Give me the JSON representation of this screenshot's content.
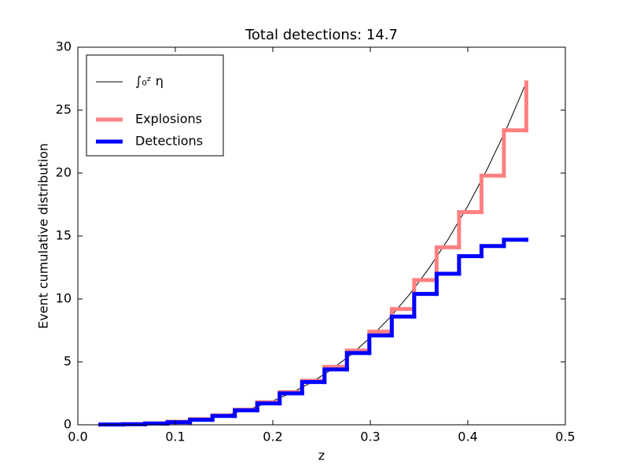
{
  "chart_data": {
    "type": "line",
    "title": "Total detections: 14.7",
    "x_label": "z",
    "y_label": "Event cumulative distribution",
    "xlim": [
      0,
      0.5
    ],
    "ylim": [
      0,
      30
    ],
    "xticks": [
      {
        "value": 0,
        "label": "0.0"
      },
      0.1,
      0.2,
      0.3,
      0.4,
      0.5
    ],
    "yticks": [
      0,
      5,
      10,
      15,
      20,
      25,
      30
    ],
    "legend": "upper left",
    "series": [
      {
        "name": "∫₀ᶻ η",
        "color": "#000000",
        "width": 1,
        "drawstyle": "default",
        "x": [
          0.02,
          0.04,
          0.06,
          0.08,
          0.1,
          0.12,
          0.14,
          0.16,
          0.18,
          0.2,
          0.22,
          0.24,
          0.26,
          0.28,
          0.3,
          0.32,
          0.34,
          0.36,
          0.38,
          0.4,
          0.42,
          0.44,
          0.46
        ],
        "values": [
          0.0,
          0.01,
          0.04,
          0.1,
          0.21,
          0.37,
          0.6,
          0.93,
          1.35,
          1.9,
          2.57,
          3.39,
          4.38,
          5.56,
          6.93,
          8.52,
          10.34,
          12.42,
          14.76,
          17.39,
          20.33,
          23.59,
          27.2
        ]
      },
      {
        "name": "Explosions",
        "color": "#ff8080",
        "width": 5,
        "drawstyle": "steps-post",
        "x": [
          0.023,
          0.046,
          0.069,
          0.092,
          0.115,
          0.138,
          0.161,
          0.184,
          0.207,
          0.23,
          0.253,
          0.276,
          0.299,
          0.322,
          0.345,
          0.368,
          0.391,
          0.414,
          0.437,
          0.46
        ],
        "values": [
          0.02,
          0.05,
          0.12,
          0.25,
          0.45,
          0.75,
          1.2,
          1.8,
          2.6,
          3.5,
          4.6,
          5.9,
          7.4,
          9.2,
          11.5,
          14.1,
          16.9,
          19.8,
          23.4,
          27.2
        ]
      },
      {
        "name": "Detections",
        "color": "#0000ff",
        "width": 5,
        "drawstyle": "steps-post",
        "x": [
          0.023,
          0.046,
          0.069,
          0.092,
          0.115,
          0.138,
          0.161,
          0.184,
          0.207,
          0.23,
          0.253,
          0.276,
          0.299,
          0.322,
          0.345,
          0.368,
          0.391,
          0.414,
          0.437,
          0.46
        ],
        "values": [
          0.02,
          0.05,
          0.1,
          0.2,
          0.4,
          0.7,
          1.15,
          1.7,
          2.5,
          3.4,
          4.4,
          5.7,
          7.1,
          8.6,
          10.4,
          12.0,
          13.4,
          14.2,
          14.7,
          14.7
        ]
      }
    ]
  }
}
